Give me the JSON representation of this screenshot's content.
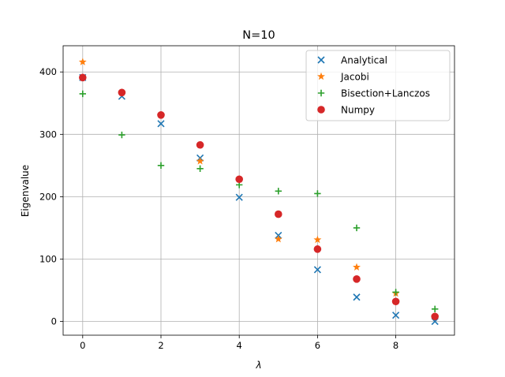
{
  "chart_data": {
    "type": "scatter",
    "title": "N=10",
    "xlabel": "λ",
    "ylabel": "Eigenvalue",
    "xlim": [
      -0.5,
      9.5
    ],
    "ylim": [
      -22,
      442
    ],
    "xticks": [
      0,
      2,
      4,
      6,
      8
    ],
    "yticks": [
      0,
      100,
      200,
      300,
      400
    ],
    "grid": true,
    "legend_position": "top-right",
    "series": [
      {
        "name": "Analytical",
        "marker": "x",
        "color": "#1f77b4",
        "x": [
          0,
          1,
          2,
          3,
          4,
          5,
          6,
          7,
          8,
          9
        ],
        "y": [
          391,
          361,
          317,
          262,
          199,
          138,
          83,
          39,
          10,
          0
        ]
      },
      {
        "name": "Jacobi",
        "marker": "star",
        "color": "#ff7f0e",
        "x": [
          0,
          1,
          2,
          3,
          4,
          5,
          6,
          7,
          8,
          9
        ],
        "y": [
          416,
          367,
          331,
          257,
          228,
          132,
          131,
          87,
          45,
          8
        ]
      },
      {
        "name": "Bisection+Lanczos",
        "marker": "plus",
        "color": "#2ca02c",
        "x": [
          0,
          1,
          2,
          3,
          4,
          5,
          6,
          7,
          8,
          9
        ],
        "y": [
          365,
          299,
          250,
          245,
          219,
          209,
          205,
          150,
          47,
          20
        ]
      },
      {
        "name": "Numpy",
        "marker": "circle",
        "color": "#d62728",
        "x": [
          0,
          1,
          2,
          3,
          4,
          5,
          6,
          7,
          8,
          9
        ],
        "y": [
          391,
          367,
          331,
          283,
          228,
          172,
          116,
          68,
          32,
          8
        ]
      }
    ]
  }
}
